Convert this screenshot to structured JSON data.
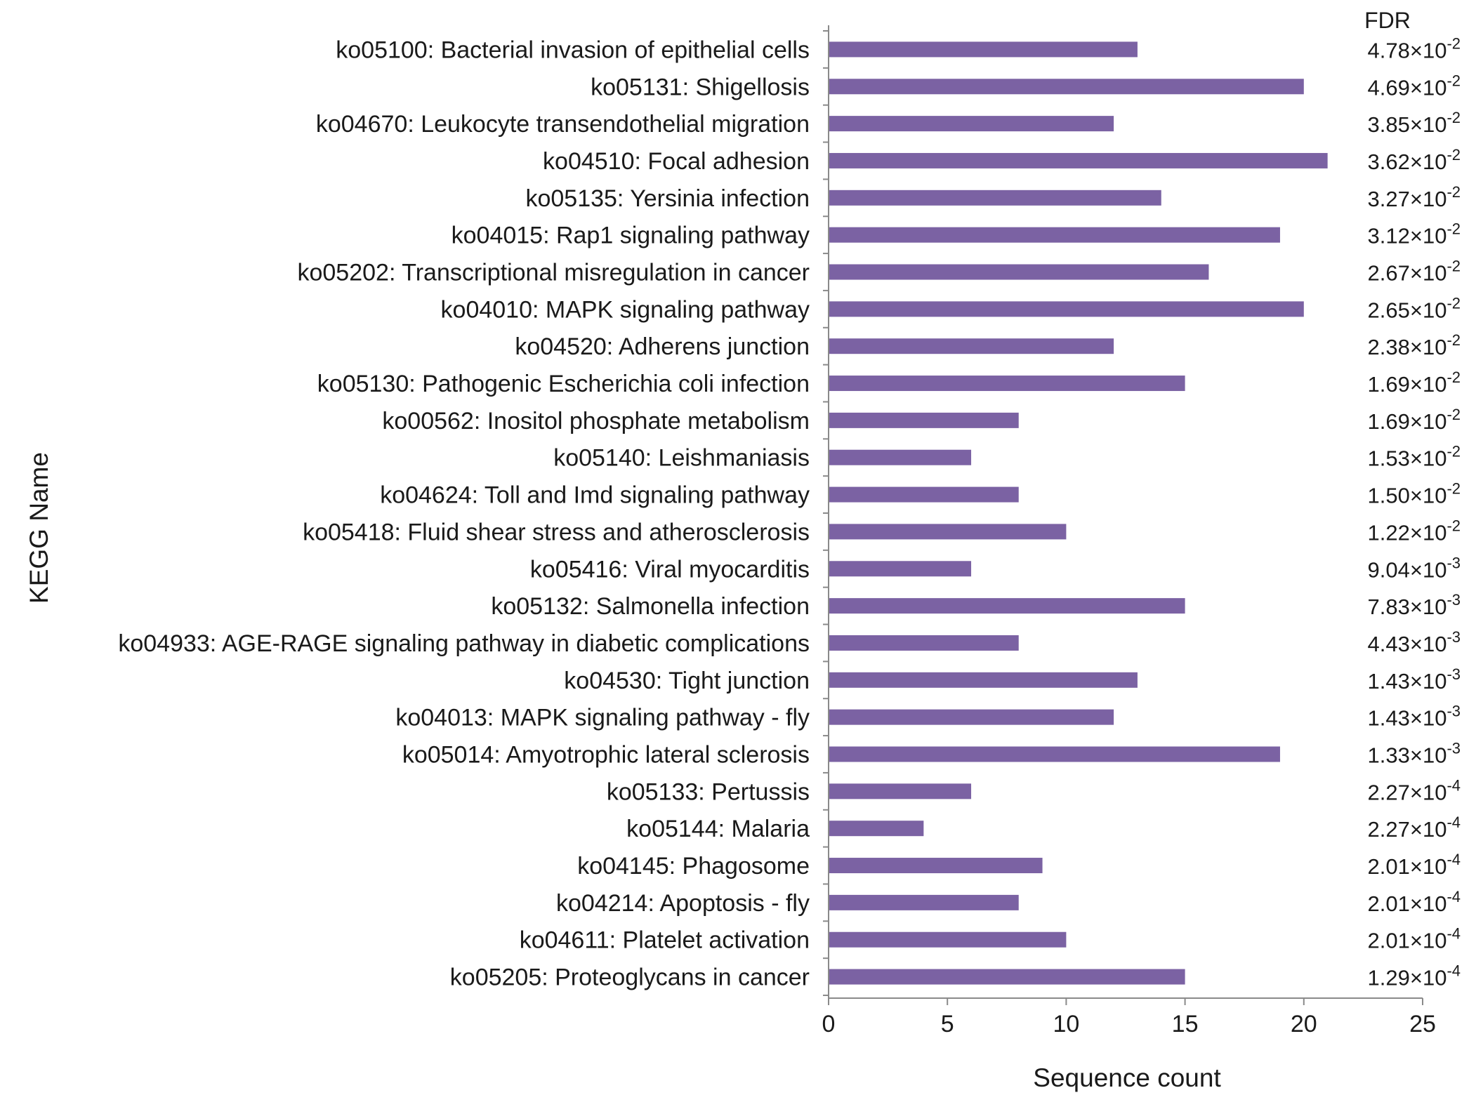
{
  "chart_data": {
    "type": "bar",
    "orientation": "horizontal",
    "categories": [
      "ko05100: Bacterial invasion of epithelial cells",
      "ko05131: Shigellosis",
      "ko04670: Leukocyte transendothelial migration",
      "ko04510: Focal adhesion",
      "ko05135: Yersinia infection",
      "ko04015: Rap1 signaling pathway",
      "ko05202: Transcriptional misregulation in cancer",
      "ko04010: MAPK signaling pathway",
      "ko04520: Adherens junction",
      "ko05130: Pathogenic Escherichia coli infection",
      "ko00562: Inositol phosphate metabolism",
      "ko05140: Leishmaniasis",
      "ko04624: Toll and Imd signaling pathway",
      "ko05418: Fluid shear stress and atherosclerosis",
      "ko05416: Viral myocarditis",
      "ko05132: Salmonella infection",
      "ko04933: AGE-RAGE signaling pathway in diabetic complications",
      "ko04530: Tight junction",
      "ko04013: MAPK signaling pathway - fly",
      "ko05014: Amyotrophic lateral sclerosis",
      "ko05133: Pertussis",
      "ko05144: Malaria",
      "ko04145: Phagosome",
      "ko04214: Apoptosis - fly",
      "ko04611: Platelet activation",
      "ko05205: Proteoglycans in cancer"
    ],
    "values": [
      13,
      20,
      12,
      21,
      14,
      19,
      16,
      20,
      12,
      15,
      8,
      6,
      8,
      10,
      6,
      15,
      8,
      13,
      12,
      19,
      6,
      4,
      9,
      8,
      10,
      15
    ],
    "fdr_title": "FDR",
    "fdr": [
      {
        "mantissa": "4.78",
        "exponent": "-2"
      },
      {
        "mantissa": "4.69",
        "exponent": "-2"
      },
      {
        "mantissa": "3.85",
        "exponent": "-2"
      },
      {
        "mantissa": "3.62",
        "exponent": "-2"
      },
      {
        "mantissa": "3.27",
        "exponent": "-2"
      },
      {
        "mantissa": "3.12",
        "exponent": "-2"
      },
      {
        "mantissa": "2.67",
        "exponent": "-2"
      },
      {
        "mantissa": "2.65",
        "exponent": "-2"
      },
      {
        "mantissa": "2.38",
        "exponent": "-2"
      },
      {
        "mantissa": "1.69",
        "exponent": "-2"
      },
      {
        "mantissa": "1.69",
        "exponent": "-2"
      },
      {
        "mantissa": "1.53",
        "exponent": "-2"
      },
      {
        "mantissa": "1.50",
        "exponent": "-2"
      },
      {
        "mantissa": "1.22",
        "exponent": "-2"
      },
      {
        "mantissa": "9.04",
        "exponent": "-3"
      },
      {
        "mantissa": "7.83",
        "exponent": "-3"
      },
      {
        "mantissa": "4.43",
        "exponent": "-3"
      },
      {
        "mantissa": "1.43",
        "exponent": "-3"
      },
      {
        "mantissa": "1.43",
        "exponent": "-3"
      },
      {
        "mantissa": "1.33",
        "exponent": "-3"
      },
      {
        "mantissa": "2.27",
        "exponent": "-4"
      },
      {
        "mantissa": "2.27",
        "exponent": "-4"
      },
      {
        "mantissa": "2.01",
        "exponent": "-4"
      },
      {
        "mantissa": "2.01",
        "exponent": "-4"
      },
      {
        "mantissa": "2.01",
        "exponent": "-4"
      },
      {
        "mantissa": "1.29",
        "exponent": "-4"
      }
    ],
    "xlabel": "Sequence count",
    "ylabel": "KEGG Name",
    "xlim": [
      0,
      25
    ],
    "xticks": [
      0,
      5,
      10,
      15,
      20,
      25
    ],
    "grid": false,
    "legend": "none",
    "bar_color": "#7b62a3"
  }
}
